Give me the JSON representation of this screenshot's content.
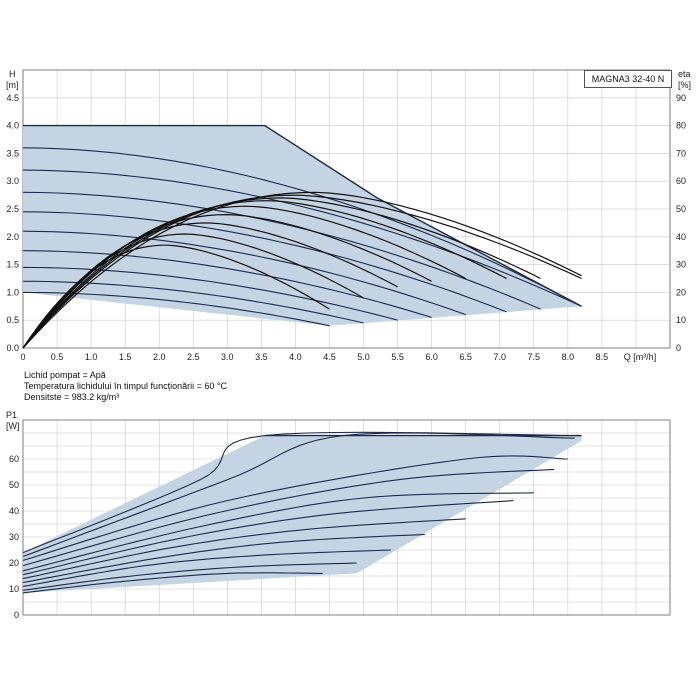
{
  "model_label": "MAGNA3 32-40 N",
  "fluid_notes": [
    "Lichid pompat = Apă",
    "Temperatura lichidului în timpul funcționării = 60 °C",
    "Densitste = 983.2 kg/m³"
  ],
  "colors": {
    "band": "#c5d4e2",
    "curve": "#1a2b4a",
    "eta": "#111111",
    "grid": "#c8c8c8"
  },
  "chart_data": [
    {
      "type": "line",
      "title": "",
      "ylabel_left": [
        "H",
        "[m]"
      ],
      "ylabel_right": [
        "eta",
        "[%]"
      ],
      "xlabel": "Q [m³/h]",
      "xlim": [
        0,
        9.5
      ],
      "ylim": [
        0,
        5.0
      ],
      "y2lim": [
        0,
        100
      ],
      "x_ticks": [
        "0",
        "0.5",
        "1.0",
        "1.5",
        "2.0",
        "2.5",
        "3.0",
        "3.5",
        "4.0",
        "4.5",
        "5.0",
        "5.5",
        "6.0",
        "6.5",
        "7.0",
        "7.5",
        "8.0",
        "8.5",
        "Q [m³/h]"
      ],
      "y_ticks": [
        "0.0",
        "0.5",
        "1.0",
        "1.5",
        "2.0",
        "2.5",
        "3.0",
        "3.5",
        "4.0",
        "4.5"
      ],
      "y2_ticks": [
        "0",
        "10",
        "20",
        "30",
        "40",
        "50",
        "60",
        "70",
        "80",
        "90"
      ],
      "grid": true,
      "envelope": [
        [
          0,
          4.0
        ],
        [
          3.55,
          4.0
        ],
        [
          5.2,
          2.7
        ],
        [
          8.2,
          0.75
        ],
        [
          4.5,
          0.4
        ],
        [
          0,
          1.0
        ]
      ],
      "head_curves": [
        {
          "h0": 1.0,
          "qmax": 4.5,
          "hend": 0.4
        },
        {
          "h0": 1.2,
          "qmax": 5.0,
          "hend": 0.45
        },
        {
          "h0": 1.45,
          "qmax": 5.5,
          "hend": 0.5
        },
        {
          "h0": 1.75,
          "qmax": 6.0,
          "hend": 0.55
        },
        {
          "h0": 2.1,
          "qmax": 6.5,
          "hend": 0.6
        },
        {
          "h0": 2.45,
          "qmax": 7.1,
          "hend": 0.65
        },
        {
          "h0": 2.8,
          "qmax": 7.6,
          "hend": 0.7
        },
        {
          "h0": 3.2,
          "qmax": 8.2,
          "hend": 0.75
        },
        {
          "h0": 3.6,
          "qmax": 8.2,
          "hend": 0.75
        }
      ],
      "eta_curves": [
        {
          "qpeak": 2.1,
          "peak": 37,
          "qend": 4.5,
          "end": 14
        },
        {
          "qpeak": 2.4,
          "peak": 41,
          "qend": 5.0,
          "end": 18
        },
        {
          "qpeak": 2.7,
          "peak": 45,
          "qend": 5.5,
          "end": 22
        },
        {
          "qpeak": 3.0,
          "peak": 48,
          "qend": 6.0,
          "end": 24
        },
        {
          "qpeak": 3.3,
          "peak": 51,
          "qend": 6.5,
          "end": 25
        },
        {
          "qpeak": 3.6,
          "peak": 53,
          "qend": 7.1,
          "end": 25
        },
        {
          "qpeak": 3.8,
          "peak": 54,
          "qend": 7.6,
          "end": 25
        },
        {
          "qpeak": 4.0,
          "peak": 55,
          "qend": 8.2,
          "end": 25
        },
        {
          "qpeak": 4.3,
          "peak": 56,
          "qend": 8.2,
          "end": 26
        }
      ]
    },
    {
      "type": "line",
      "title": "",
      "ylabel_left": [
        "P1",
        "[W]"
      ],
      "xlim": [
        0,
        9.5
      ],
      "ylim": [
        0,
        75
      ],
      "y_ticks": [
        "0",
        "10",
        "20",
        "30",
        "40",
        "50",
        "60"
      ],
      "grid": true,
      "envelope": [
        [
          0,
          24
        ],
        [
          3.55,
          69
        ],
        [
          8.2,
          69
        ],
        [
          8.2,
          67
        ],
        [
          4.9,
          16
        ],
        [
          0,
          8.5
        ]
      ],
      "power_curves": [
        {
          "p0": 8.5,
          "q": [
            0,
            1.5,
            3.0,
            4.4
          ],
          "p": [
            8.5,
            13,
            16,
            16
          ]
        },
        {
          "p0": 9.5,
          "q": [
            0,
            1.6,
            3.2,
            4.9
          ],
          "p": [
            9.5,
            15,
            18.5,
            20
          ]
        },
        {
          "p0": 11,
          "q": [
            0,
            1.8,
            3.5,
            5.4
          ],
          "p": [
            11,
            19,
            23,
            25
          ]
        },
        {
          "p0": 12.5,
          "q": [
            0,
            2.0,
            3.8,
            5.9
          ],
          "p": [
            12.5,
            22,
            28,
            31
          ]
        },
        {
          "p0": 14,
          "q": [
            0,
            2.2,
            4.2,
            6.5
          ],
          "p": [
            14,
            26,
            33,
            37
          ]
        },
        {
          "p0": 15.5,
          "q": [
            0,
            2.4,
            4.6,
            7.2
          ],
          "p": [
            15.5,
            30,
            39,
            44
          ]
        },
        {
          "p0": 17,
          "q": [
            0,
            2.6,
            5.0,
            7.5
          ],
          "p": [
            17,
            34,
            45,
            47
          ]
        },
        {
          "p0": 19,
          "q": [
            0,
            2.8,
            5.5,
            7.8
          ],
          "p": [
            19,
            39,
            52,
            56
          ]
        },
        {
          "p0": 21,
          "q": [
            0,
            3.0,
            6.5,
            8.0
          ],
          "p": [
            21,
            44,
            60,
            60
          ]
        },
        {
          "p0": 22.5,
          "q": [
            0,
            3.0,
            4.7,
            8.1
          ],
          "p": [
            22.5,
            52,
            69,
            68
          ]
        },
        {
          "p0": 24,
          "q": [
            0,
            2.6,
            3.55,
            8.2
          ],
          "p": [
            24,
            52,
            69,
            69
          ]
        }
      ]
    }
  ]
}
